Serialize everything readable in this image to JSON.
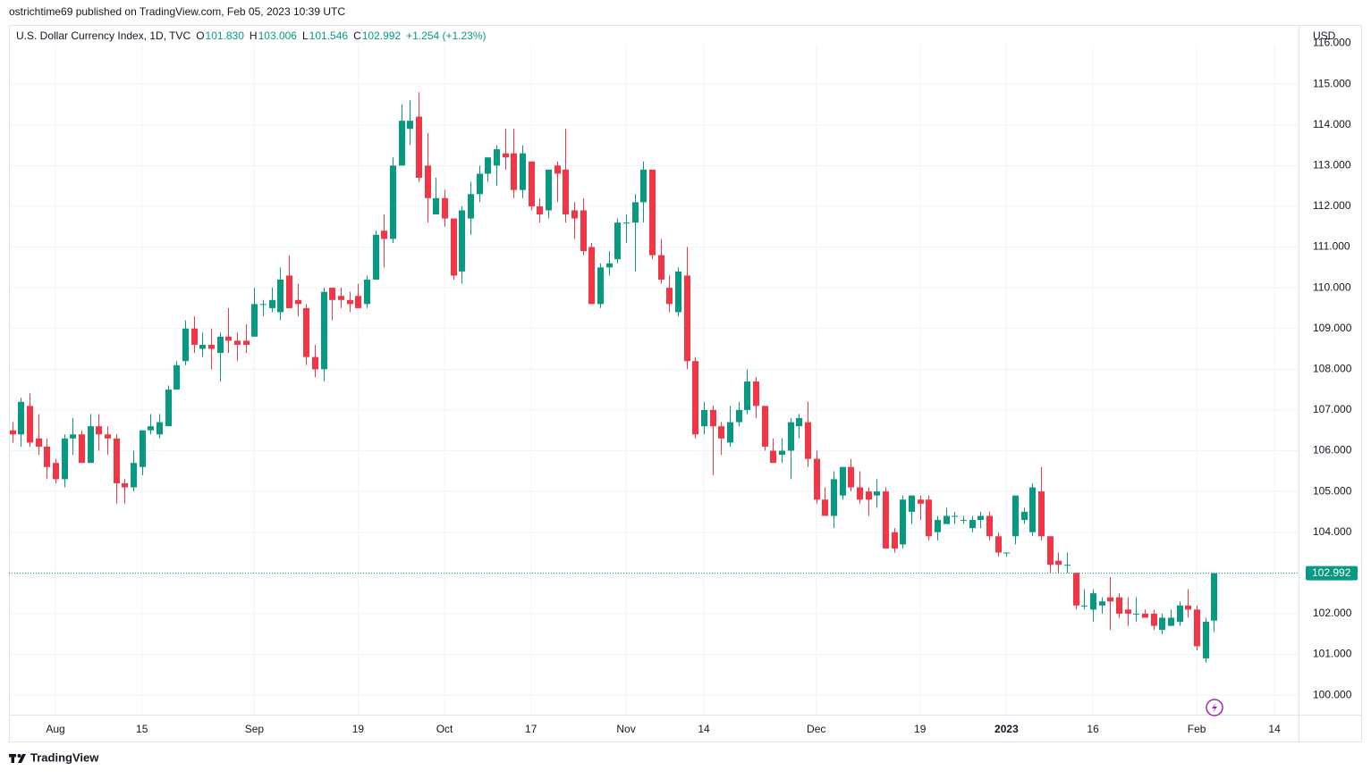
{
  "header": "ostrichtime69 published on TradingView.com, Feb 05, 2023 10:39 UTC",
  "footer": "TradingView",
  "chart_data": {
    "type": "candlestick",
    "title": "U.S. Dollar Currency Index, 1D, TVC",
    "ohlc_legend": [
      {
        "key": "O",
        "value": "101.830"
      },
      {
        "key": "H",
        "value": "103.006"
      },
      {
        "key": "L",
        "value": "101.546"
      },
      {
        "key": "C",
        "value": "102.992"
      }
    ],
    "change_label": "+1.254 (+1.23%)",
    "y_axis_label": "USD",
    "up_color": "#089981",
    "down_color": "#f23645",
    "grid": true,
    "ylim": [
      99.52,
      116.45
    ],
    "yticks": [
      {
        "value": 100,
        "label": "100.000"
      },
      {
        "value": 101,
        "label": "101.000"
      },
      {
        "value": 102,
        "label": "102.000"
      },
      {
        "value": 103,
        "label": "103.000"
      },
      {
        "value": 104,
        "label": "104.000"
      },
      {
        "value": 105,
        "label": "105.000"
      },
      {
        "value": 106,
        "label": "106.000"
      },
      {
        "value": 107,
        "label": "107.000"
      },
      {
        "value": 108,
        "label": "108.000"
      },
      {
        "value": 109,
        "label": "109.000"
      },
      {
        "value": 110,
        "label": "110.000"
      },
      {
        "value": 111,
        "label": "111.000"
      },
      {
        "value": 112,
        "label": "112.000"
      },
      {
        "value": 113,
        "label": "113.000"
      },
      {
        "value": 114,
        "label": "114.000"
      },
      {
        "value": 115,
        "label": "115.000"
      },
      {
        "value": 116,
        "label": "116.000"
      }
    ],
    "last_price": {
      "value": 102.992,
      "label": "102.992"
    },
    "categories": [
      null,
      null,
      null,
      null,
      null,
      "Aug",
      null,
      null,
      null,
      null,
      null,
      null,
      null,
      null,
      null,
      "15",
      null,
      null,
      null,
      null,
      null,
      null,
      null,
      null,
      null,
      null,
      null,
      null,
      "Sep",
      null,
      null,
      null,
      null,
      null,
      null,
      null,
      null,
      null,
      null,
      null,
      "19",
      null,
      null,
      null,
      null,
      null,
      null,
      null,
      null,
      null,
      "Oct",
      null,
      null,
      null,
      null,
      null,
      null,
      null,
      null,
      null,
      "17",
      null,
      null,
      null,
      null,
      null,
      null,
      null,
      null,
      null,
      null,
      "Nov",
      null,
      null,
      null,
      null,
      null,
      null,
      null,
      null,
      "14",
      null,
      null,
      null,
      null,
      null,
      null,
      null,
      null,
      null,
      null,
      null,
      null,
      "Dec",
      null,
      null,
      null,
      null,
      null,
      null,
      null,
      null,
      null,
      null,
      null,
      "19",
      null,
      null,
      null,
      null,
      null,
      null,
      null,
      null,
      null,
      "2023",
      null,
      null,
      null,
      null,
      null,
      null,
      null,
      null,
      null,
      "16",
      null,
      null,
      null,
      null,
      null,
      null,
      null,
      null,
      null,
      null,
      null,
      "Feb",
      null,
      null,
      null,
      null,
      null,
      null,
      null,
      null,
      "14",
      null
    ],
    "open": [
      106.5,
      106.4,
      107.1,
      106.3,
      106.1,
      105.7,
      105.3,
      106.3,
      106.4,
      105.7,
      106.6,
      106.4,
      106.3,
      105.2,
      105.1,
      105.6,
      106.5,
      106.4,
      106.6,
      107.5,
      108.2,
      109.0,
      108.5,
      108.6,
      108.4,
      108.8,
      108.7,
      108.7,
      108.8,
      109.6,
      109.5,
      109.4,
      110.3,
      109.7,
      109.5,
      108.3,
      108.0,
      110.0,
      109.8,
      109.7,
      109.8,
      109.6,
      110.2,
      111.4,
      111.2,
      113.0,
      113.9,
      114.2,
      113.0,
      111.8,
      112.2,
      111.7,
      110.4,
      111.7,
      112.3,
      112.8,
      113.0,
      113.3,
      113.3,
      112.4,
      113.1,
      112.0,
      111.9,
      113.0,
      112.9,
      111.9,
      111.9,
      111.0,
      109.6,
      110.5,
      110.7,
      111.6,
      111.6,
      112.1,
      112.9,
      110.8,
      110.0,
      109.4,
      110.3,
      108.2,
      106.6,
      107.0,
      106.6,
      106.2,
      106.7,
      107.0,
      107.7,
      107.1,
      106.0,
      105.9,
      106.0,
      106.6,
      106.7,
      105.8,
      104.8,
      104.4,
      104.9,
      105.6,
      105.1,
      105.0,
      104.9,
      105.0,
      104.0,
      103.7,
      104.5,
      104.8,
      104.8,
      104.0,
      104.2,
      104.4,
      104.3,
      104.1,
      104.3,
      104.4,
      103.9,
      103.5,
      103.9,
      104.3,
      104.0,
      105.0,
      103.9,
      103.3,
      103.2,
      103.0,
      102.2,
      102.1,
      102.2,
      102.4,
      102.4,
      102.1,
      102.0,
      102.0,
      102.0,
      101.6,
      101.7,
      101.8,
      102.2,
      102.1,
      100.9,
      101.83,
      null,
      null,
      null,
      null,
      null,
      null,
      null,
      null
    ],
    "high": [
      106.7,
      107.3,
      107.4,
      106.9,
      106.3,
      105.8,
      106.4,
      106.8,
      106.5,
      106.9,
      106.9,
      106.6,
      106.4,
      105.3,
      106.0,
      106.5,
      106.9,
      106.9,
      107.6,
      108.2,
      109.2,
      109.3,
      108.9,
      109.0,
      108.9,
      109.5,
      108.9,
      109.1,
      110.0,
      109.7,
      110.0,
      110.5,
      110.8,
      110.1,
      109.6,
      108.6,
      110.0,
      110.0,
      110.0,
      109.9,
      110.1,
      110.3,
      111.4,
      111.8,
      113.2,
      114.5,
      114.6,
      114.8,
      113.8,
      112.7,
      112.4,
      111.7,
      112.0,
      112.6,
      113.0,
      113.2,
      113.5,
      113.9,
      113.9,
      113.5,
      113.1,
      112.2,
      112.9,
      113.1,
      113.9,
      112.1,
      112.2,
      111.1,
      110.6,
      110.9,
      111.7,
      111.8,
      112.3,
      113.1,
      112.9,
      111.2,
      110.3,
      110.5,
      111.0,
      108.3,
      107.2,
      107.1,
      106.7,
      107.1,
      107.2,
      108.0,
      107.8,
      107.1,
      106.3,
      106.3,
      106.8,
      106.9,
      107.2,
      106.0,
      105.1,
      105.5,
      105.6,
      105.8,
      105.5,
      105.1,
      105.3,
      105.1,
      104.1,
      104.9,
      104.9,
      104.9,
      104.9,
      104.4,
      104.6,
      104.5,
      104.4,
      104.4,
      104.5,
      104.5,
      104.0,
      103.5,
      104.9,
      104.6,
      105.2,
      105.6,
      103.9,
      103.5,
      103.5,
      103.0,
      102.6,
      102.6,
      102.4,
      102.9,
      102.5,
      102.4,
      102.4,
      102.1,
      102.1,
      102.0,
      102.1,
      102.3,
      102.6,
      102.2,
      101.9,
      103.006,
      null,
      null,
      null,
      null,
      null,
      null,
      null,
      null
    ],
    "low": [
      106.2,
      106.1,
      106.1,
      105.9,
      105.3,
      105.2,
      105.1,
      105.9,
      105.7,
      105.7,
      106.0,
      105.9,
      104.7,
      104.7,
      105.0,
      105.4,
      106.4,
      106.3,
      106.6,
      107.5,
      108.1,
      108.4,
      108.3,
      108.0,
      107.7,
      108.4,
      108.2,
      108.4,
      108.8,
      109.3,
      109.4,
      109.2,
      109.5,
      109.3,
      108.1,
      107.8,
      107.7,
      109.2,
      109.5,
      109.4,
      109.5,
      109.5,
      110.2,
      110.5,
      111.1,
      113.0,
      113.5,
      112.6,
      111.6,
      111.8,
      111.5,
      110.2,
      110.1,
      111.3,
      112.1,
      112.6,
      112.5,
      112.9,
      112.2,
      112.2,
      111.9,
      111.6,
      111.7,
      112.1,
      111.6,
      111.2,
      110.8,
      109.6,
      109.5,
      110.3,
      110.6,
      111.1,
      110.4,
      111.6,
      110.7,
      110.1,
      109.4,
      109.3,
      108.0,
      106.3,
      106.4,
      105.4,
      105.9,
      106.1,
      106.6,
      106.9,
      106.8,
      106.0,
      105.7,
      105.7,
      105.3,
      106.3,
      105.6,
      104.7,
      104.4,
      104.1,
      104.8,
      105.0,
      104.7,
      104.4,
      104.6,
      103.6,
      103.5,
      103.6,
      104.2,
      104.3,
      103.8,
      103.8,
      104.2,
      104.2,
      104.2,
      104.0,
      104.1,
      103.8,
      103.4,
      103.4,
      103.7,
      104.2,
      103.9,
      103.8,
      103.0,
      103.0,
      103.0,
      102.1,
      102.1,
      101.8,
      102.0,
      101.6,
      101.9,
      101.7,
      101.8,
      101.9,
      101.6,
      101.5,
      101.7,
      101.7,
      101.9,
      101.1,
      100.8,
      101.546,
      null,
      null,
      null,
      null,
      null,
      null,
      null,
      null
    ],
    "close": [
      106.4,
      107.2,
      106.2,
      106.1,
      105.6,
      105.3,
      106.3,
      106.4,
      105.7,
      106.6,
      106.4,
      106.3,
      105.2,
      105.1,
      105.7,
      106.5,
      106.6,
      106.7,
      107.5,
      108.1,
      109.0,
      108.6,
      108.6,
      108.5,
      108.8,
      108.7,
      108.6,
      108.6,
      109.6,
      109.6,
      109.7,
      110.2,
      109.5,
      109.6,
      108.3,
      108.0,
      109.9,
      109.7,
      109.7,
      109.6,
      109.5,
      110.2,
      111.3,
      111.2,
      113.0,
      114.1,
      114.1,
      112.7,
      112.2,
      112.2,
      111.7,
      110.3,
      111.9,
      112.3,
      112.8,
      113.2,
      113.4,
      113.2,
      112.4,
      113.3,
      112.0,
      111.8,
      112.9,
      112.8,
      111.8,
      111.7,
      110.9,
      109.6,
      110.5,
      110.6,
      111.6,
      111.6,
      112.1,
      112.9,
      110.8,
      110.2,
      109.6,
      110.4,
      108.2,
      106.4,
      107.0,
      106.6,
      106.3,
      106.7,
      107.0,
      107.7,
      107.1,
      106.1,
      105.7,
      106.0,
      106.7,
      106.8,
      105.8,
      104.8,
      104.4,
      105.3,
      105.6,
      105.1,
      104.8,
      104.8,
      105.0,
      103.6,
      103.6,
      104.8,
      104.9,
      104.7,
      103.9,
      104.3,
      104.4,
      104.4,
      104.3,
      104.3,
      104.4,
      103.9,
      103.5,
      103.5,
      104.9,
      104.5,
      105.1,
      103.9,
      103.2,
      103.2,
      103.2,
      102.2,
      102.2,
      102.5,
      102.3,
      102.3,
      102.0,
      102.0,
      102.0,
      101.9,
      101.7,
      101.9,
      101.9,
      102.2,
      102.1,
      101.2,
      101.8,
      102.992,
      null,
      null,
      null,
      null,
      null,
      null,
      null,
      null
    ]
  }
}
